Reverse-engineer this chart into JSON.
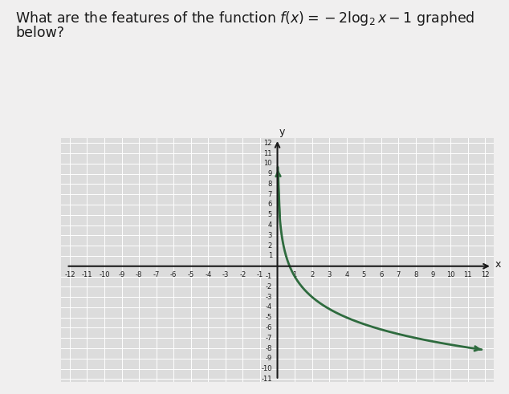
{
  "title_line1": "What are the features of the function ",
  "title_math": "$f(x) = -2\\log_2 x - 1$",
  "title_line2": " graphed",
  "title_line3": "below?",
  "title_fontsize": 12.5,
  "title_color": "#1a1a1a",
  "background_color": "#f0efef",
  "plot_bg_color": "#dcdcdc",
  "grid_color": "#ffffff",
  "curve_color": "#2e6b3e",
  "axis_color": "#1a1a1a",
  "xmin": -12,
  "xmax": 12,
  "ymin": -11,
  "ymax": 12,
  "x_ticks": [
    -12,
    -11,
    -10,
    -9,
    -8,
    -7,
    -6,
    -5,
    -4,
    -3,
    -2,
    -1,
    1,
    2,
    3,
    4,
    5,
    6,
    7,
    8,
    9,
    10,
    11,
    12
  ],
  "y_ticks": [
    -11,
    -10,
    -9,
    -8,
    -7,
    -6,
    -5,
    -4,
    -3,
    -2,
    -1,
    1,
    2,
    3,
    4,
    5,
    6,
    7,
    8,
    9,
    10,
    11,
    12
  ],
  "xlabel": "x",
  "ylabel": "y",
  "curve_x_start": 0.025,
  "curve_x_end": 11.8,
  "tick_fontsize": 6.0
}
